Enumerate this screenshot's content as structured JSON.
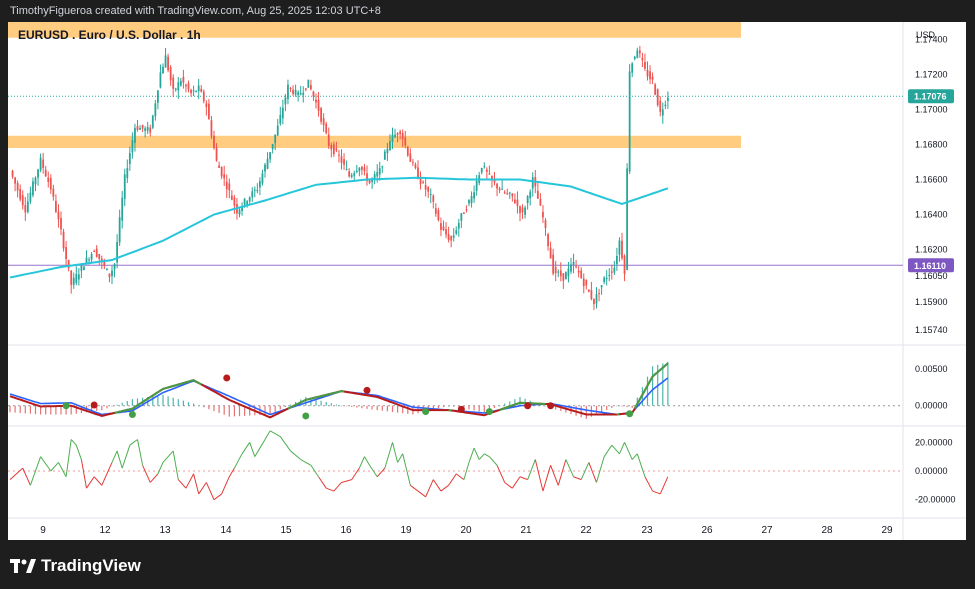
{
  "header": {
    "attribution": "TimothyFigueroa created with TradingView.com, Aug 25, 2025 12:03 UTC+8"
  },
  "footer": {
    "brand": "TradingView",
    "logo_icon": "tradingview-logo-icon"
  },
  "colors": {
    "bg_dark": "#1e1e1e",
    "zone": "#ffcc80",
    "ema": "#26c6da",
    "level_line": "#9575cd",
    "up": "#26a69a",
    "down": "#ef5350",
    "price_badge": "#26a69a",
    "level_badge": "#7e57c2",
    "wt_fast": "#43a047",
    "wt_slow": "#2962ff",
    "wt_neg": "#b71c1c"
  },
  "chart_data": [
    {
      "type": "candlestick",
      "title": "EURUSD . Euro / U.S. Dollar . 1h",
      "currency": "USD",
      "y_ticks": [
        "1.17400",
        "1.17200",
        "1.17000",
        "1.16800",
        "1.16600",
        "1.16400",
        "1.16200",
        "1.16050",
        "1.15900",
        "1.15740"
      ],
      "ylim": [
        1.1566,
        1.175
      ],
      "x_ticks": [
        "9",
        "12",
        "13",
        "14",
        "15",
        "16",
        "19",
        "20",
        "21",
        "22",
        "23",
        "26",
        "27",
        "28",
        "29"
      ],
      "current_price": {
        "value": 1.17076,
        "label": "1.17076"
      },
      "horizontal_line": {
        "value": 1.1611,
        "label": "1.16110"
      },
      "supply_zone": [
        1.1741,
        1.1754
      ],
      "demand_zone": [
        1.1678,
        1.1685
      ],
      "approx_price_path": [
        [
          0,
          1.1665
        ],
        [
          6,
          1.1643
        ],
        [
          12,
          1.1671
        ],
        [
          16,
          1.1655
        ],
        [
          20,
          1.163
        ],
        [
          24,
          1.16
        ],
        [
          29,
          1.1612
        ],
        [
          33,
          1.162
        ],
        [
          39,
          1.1605
        ],
        [
          41,
          1.1612
        ],
        [
          45,
          1.1661
        ],
        [
          49,
          1.169
        ],
        [
          55,
          1.1688
        ],
        [
          59,
          1.1721
        ],
        [
          61,
          1.173
        ],
        [
          64,
          1.171
        ],
        [
          67,
          1.1717
        ],
        [
          71,
          1.1709
        ],
        [
          74,
          1.1712
        ],
        [
          77,
          1.1702
        ],
        [
          81,
          1.167
        ],
        [
          84,
          1.166
        ],
        [
          89,
          1.1642
        ],
        [
          93,
          1.1649
        ],
        [
          97,
          1.1655
        ],
        [
          101,
          1.1672
        ],
        [
          105,
          1.169
        ],
        [
          109,
          1.1713
        ],
        [
          113,
          1.1708
        ],
        [
          117,
          1.1715
        ],
        [
          121,
          1.17
        ],
        [
          125,
          1.168
        ],
        [
          129,
          1.1673
        ],
        [
          133,
          1.1662
        ],
        [
          137,
          1.1668
        ],
        [
          141,
          1.1658
        ],
        [
          145,
          1.1665
        ],
        [
          149,
          1.1683
        ],
        [
          153,
          1.1688
        ],
        [
          157,
          1.1671
        ],
        [
          161,
          1.1659
        ],
        [
          165,
          1.165
        ],
        [
          169,
          1.1632
        ],
        [
          173,
          1.1625
        ],
        [
          177,
          1.1639
        ],
        [
          181,
          1.165
        ],
        [
          185,
          1.1668
        ],
        [
          189,
          1.1659
        ],
        [
          193,
          1.1653
        ],
        [
          197,
          1.165
        ],
        [
          201,
          1.164
        ],
        [
          205,
          1.166
        ],
        [
          209,
          1.1638
        ],
        [
          213,
          1.1608
        ],
        [
          217,
          1.1604
        ],
        [
          221,
          1.1612
        ],
        [
          225,
          1.1601
        ],
        [
          229,
          1.159
        ],
        [
          233,
          1.1603
        ],
        [
          237,
          1.161
        ],
        [
          239,
          1.1625
        ],
        [
          241,
          1.1608
        ],
        [
          243,
          1.1723
        ],
        [
          246,
          1.1735
        ],
        [
          249,
          1.1722
        ],
        [
          252,
          1.1716
        ],
        [
          255,
          1.1698
        ],
        [
          258,
          1.1708
        ]
      ],
      "approx_moving_average": [
        [
          0,
          1.1604
        ],
        [
          20,
          1.161
        ],
        [
          40,
          1.1614
        ],
        [
          60,
          1.1625
        ],
        [
          80,
          1.164
        ],
        [
          100,
          1.1648
        ],
        [
          120,
          1.1657
        ],
        [
          140,
          1.166
        ],
        [
          160,
          1.1661
        ],
        [
          180,
          1.166
        ],
        [
          200,
          1.166
        ],
        [
          220,
          1.1656
        ],
        [
          240,
          1.1646
        ],
        [
          250,
          1.1651
        ],
        [
          258,
          1.1655
        ]
      ]
    },
    {
      "type": "line",
      "name": "oscillator",
      "y_ticks": [
        "0.00500",
        "0.00000"
      ],
      "ylim": [
        -0.0025,
        0.0079
      ],
      "approx_fast": [
        [
          0,
          0.0013
        ],
        [
          12,
          -0.0001
        ],
        [
          24,
          0.0
        ],
        [
          36,
          -0.0014
        ],
        [
          48,
          -0.0004
        ],
        [
          60,
          0.0023
        ],
        [
          72,
          0.0035
        ],
        [
          86,
          0.0008
        ],
        [
          102,
          -0.0016
        ],
        [
          116,
          0.0008
        ],
        [
          130,
          0.002
        ],
        [
          144,
          0.0012
        ],
        [
          158,
          -0.0006
        ],
        [
          172,
          -0.0006
        ],
        [
          186,
          -0.0013
        ],
        [
          200,
          0.0004
        ],
        [
          212,
          0.0002
        ],
        [
          226,
          -0.0012
        ],
        [
          238,
          -0.0012
        ],
        [
          244,
          -0.001
        ],
        [
          252,
          0.004
        ],
        [
          258,
          0.0058
        ]
      ],
      "approx_slow": [
        [
          0,
          0.0016
        ],
        [
          12,
          0.0003
        ],
        [
          24,
          0.0004
        ],
        [
          36,
          -0.0012
        ],
        [
          48,
          -0.0007
        ],
        [
          60,
          0.0018
        ],
        [
          72,
          0.0034
        ],
        [
          86,
          0.0013
        ],
        [
          102,
          -0.0012
        ],
        [
          116,
          0.0004
        ],
        [
          130,
          0.002
        ],
        [
          144,
          0.0014
        ],
        [
          158,
          -0.0002
        ],
        [
          172,
          -0.0006
        ],
        [
          186,
          -0.001
        ],
        [
          200,
          0.0
        ],
        [
          212,
          0.0003
        ],
        [
          226,
          -0.0006
        ],
        [
          238,
          -0.0012
        ],
        [
          244,
          -0.0009
        ],
        [
          252,
          0.0022
        ],
        [
          258,
          0.0038
        ]
      ],
      "approx_cross_points": [
        {
          "x": 22,
          "y": 0.0,
          "color": "#43a047"
        },
        {
          "x": 33,
          "y": 0.0001,
          "color": "#b71c1c"
        },
        {
          "x": 48,
          "y": -0.0012,
          "color": "#43a047"
        },
        {
          "x": 85,
          "y": 0.0038,
          "color": "#b71c1c"
        },
        {
          "x": 116,
          "y": -0.0014,
          "color": "#43a047"
        },
        {
          "x": 140,
          "y": 0.0021,
          "color": "#b71c1c"
        },
        {
          "x": 163,
          "y": -0.0008,
          "color": "#43a047"
        },
        {
          "x": 177,
          "y": -0.0005,
          "color": "#b71c1c"
        },
        {
          "x": 188,
          "y": -0.0008,
          "color": "#43a047"
        },
        {
          "x": 203,
          "y": 0.0,
          "color": "#b71c1c"
        },
        {
          "x": 212,
          "y": 0.0,
          "color": "#b71c1c"
        },
        {
          "x": 243,
          "y": -0.0011,
          "color": "#43a047"
        }
      ]
    },
    {
      "type": "line",
      "name": "momentum",
      "y_ticks": [
        "20.00000",
        "0.00000",
        "-20.00000"
      ],
      "ylim": [
        -30,
        30
      ],
      "approx_values": [
        [
          0,
          -6
        ],
        [
          5,
          2
        ],
        [
          8,
          -10
        ],
        [
          12,
          10
        ],
        [
          16,
          0
        ],
        [
          19,
          6
        ],
        [
          22,
          -4
        ],
        [
          24,
          22
        ],
        [
          26,
          18
        ],
        [
          28,
          8
        ],
        [
          30,
          -12
        ],
        [
          33,
          -4
        ],
        [
          36,
          -10
        ],
        [
          40,
          6
        ],
        [
          42,
          14
        ],
        [
          44,
          2
        ],
        [
          47,
          18
        ],
        [
          50,
          22
        ],
        [
          52,
          4
        ],
        [
          55,
          -8
        ],
        [
          58,
          -2
        ],
        [
          60,
          6
        ],
        [
          64,
          14
        ],
        [
          66,
          -6
        ],
        [
          69,
          -12
        ],
        [
          72,
          -2
        ],
        [
          74,
          -16
        ],
        [
          77,
          -8
        ],
        [
          80,
          -20
        ],
        [
          83,
          -16
        ],
        [
          86,
          -4
        ],
        [
          88,
          2
        ],
        [
          91,
          12
        ],
        [
          94,
          20
        ],
        [
          96,
          10
        ],
        [
          98,
          16
        ],
        [
          100,
          22
        ],
        [
          102,
          28
        ],
        [
          106,
          24
        ],
        [
          110,
          14
        ],
        [
          114,
          8
        ],
        [
          118,
          4
        ],
        [
          121,
          -4
        ],
        [
          124,
          -12
        ],
        [
          127,
          -14
        ],
        [
          130,
          -8
        ],
        [
          134,
          -6
        ],
        [
          137,
          2
        ],
        [
          139,
          10
        ],
        [
          141,
          4
        ],
        [
          144,
          -4
        ],
        [
          147,
          2
        ],
        [
          150,
          20
        ],
        [
          152,
          6
        ],
        [
          154,
          12
        ],
        [
          157,
          -10
        ],
        [
          160,
          -14
        ],
        [
          163,
          -18
        ],
        [
          166,
          -6
        ],
        [
          169,
          -14
        ],
        [
          172,
          -10
        ],
        [
          175,
          -2
        ],
        [
          178,
          -6
        ],
        [
          180,
          6
        ],
        [
          182,
          16
        ],
        [
          184,
          8
        ],
        [
          186,
          12
        ],
        [
          188,
          10
        ],
        [
          191,
          4
        ],
        [
          194,
          -8
        ],
        [
          197,
          -12
        ],
        [
          200,
          -4
        ],
        [
          203,
          -6
        ],
        [
          206,
          8
        ],
        [
          209,
          -14
        ],
        [
          212,
          4
        ],
        [
          215,
          -10
        ],
        [
          218,
          8
        ],
        [
          221,
          -4
        ],
        [
          224,
          -6
        ],
        [
          227,
          6
        ],
        [
          230,
          -8
        ],
        [
          233,
          10
        ],
        [
          236,
          18
        ],
        [
          239,
          12
        ],
        [
          241,
          20
        ],
        [
          244,
          8
        ],
        [
          246,
          12
        ],
        [
          249,
          -4
        ],
        [
          252,
          -14
        ],
        [
          255,
          -16
        ],
        [
          258,
          -4
        ]
      ]
    }
  ]
}
